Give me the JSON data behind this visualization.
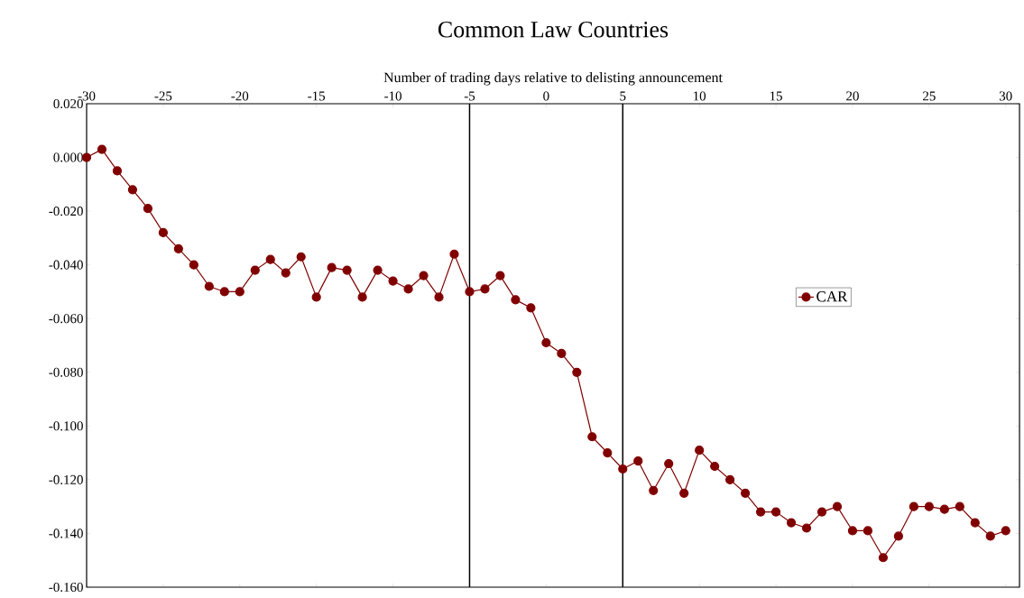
{
  "chart_data": {
    "type": "line",
    "title": "Common Law Countries",
    "xlabel": "Number of trading days relative to delisting announcement",
    "x": [
      -30,
      -29,
      -28,
      -27,
      -26,
      -25,
      -24,
      -23,
      -22,
      -21,
      -20,
      -19,
      -18,
      -17,
      -16,
      -15,
      -14,
      -13,
      -12,
      -11,
      -10,
      -9,
      -8,
      -7,
      -6,
      -5,
      -4,
      -3,
      -2,
      -1,
      0,
      1,
      2,
      3,
      4,
      5,
      6,
      7,
      8,
      9,
      10,
      11,
      12,
      13,
      14,
      15,
      16,
      17,
      18,
      19,
      20,
      21,
      22,
      23,
      24,
      25,
      26,
      27,
      28,
      29,
      30
    ],
    "series": [
      {
        "name": "CAR",
        "color": "#800000",
        "values": [
          0.0,
          0.003,
          -0.005,
          -0.012,
          -0.019,
          -0.028,
          -0.034,
          -0.04,
          -0.048,
          -0.05,
          -0.05,
          -0.042,
          -0.038,
          -0.043,
          -0.037,
          -0.052,
          -0.041,
          -0.042,
          -0.052,
          -0.042,
          -0.046,
          -0.049,
          -0.044,
          -0.052,
          -0.036,
          -0.05,
          -0.049,
          -0.044,
          -0.053,
          -0.056,
          -0.069,
          -0.073,
          -0.08,
          -0.104,
          -0.11,
          -0.116,
          -0.113,
          -0.124,
          -0.114,
          -0.125,
          -0.109,
          -0.115,
          -0.12,
          -0.125,
          -0.132,
          -0.132,
          -0.136,
          -0.138,
          -0.132,
          -0.13,
          -0.139,
          -0.139,
          -0.149,
          -0.141,
          -0.13,
          -0.13,
          -0.131,
          -0.13,
          -0.136,
          -0.141,
          -0.139
        ]
      }
    ],
    "xlim": [
      -30,
      30.9
    ],
    "ylim": [
      -0.16,
      0.02
    ],
    "xticks": [
      -30,
      -25,
      -20,
      -15,
      -10,
      -5,
      0,
      5,
      10,
      15,
      20,
      25,
      30
    ],
    "yticks": [
      {
        "value": 0.02,
        "label": "0.020"
      },
      {
        "value": 0.0,
        "label": "0.000"
      },
      {
        "value": -0.02,
        "label": "-0.020"
      },
      {
        "value": -0.04,
        "label": "-0.040"
      },
      {
        "value": -0.06,
        "label": "-0.060"
      },
      {
        "value": -0.08,
        "label": "-0.080"
      },
      {
        "value": -0.1,
        "label": "-0.100"
      },
      {
        "value": -0.12,
        "label": "-0.120"
      },
      {
        "value": -0.14,
        "label": "-0.140"
      },
      {
        "value": -0.16,
        "label": "-0.160"
      }
    ],
    "ref_lines": [
      {
        "axis": "x",
        "value": -5,
        "color": "#000000"
      },
      {
        "axis": "x",
        "value": 5,
        "color": "#000000"
      }
    ],
    "grid": false,
    "legend": "right",
    "marker": "circle",
    "line_style": "solid"
  }
}
